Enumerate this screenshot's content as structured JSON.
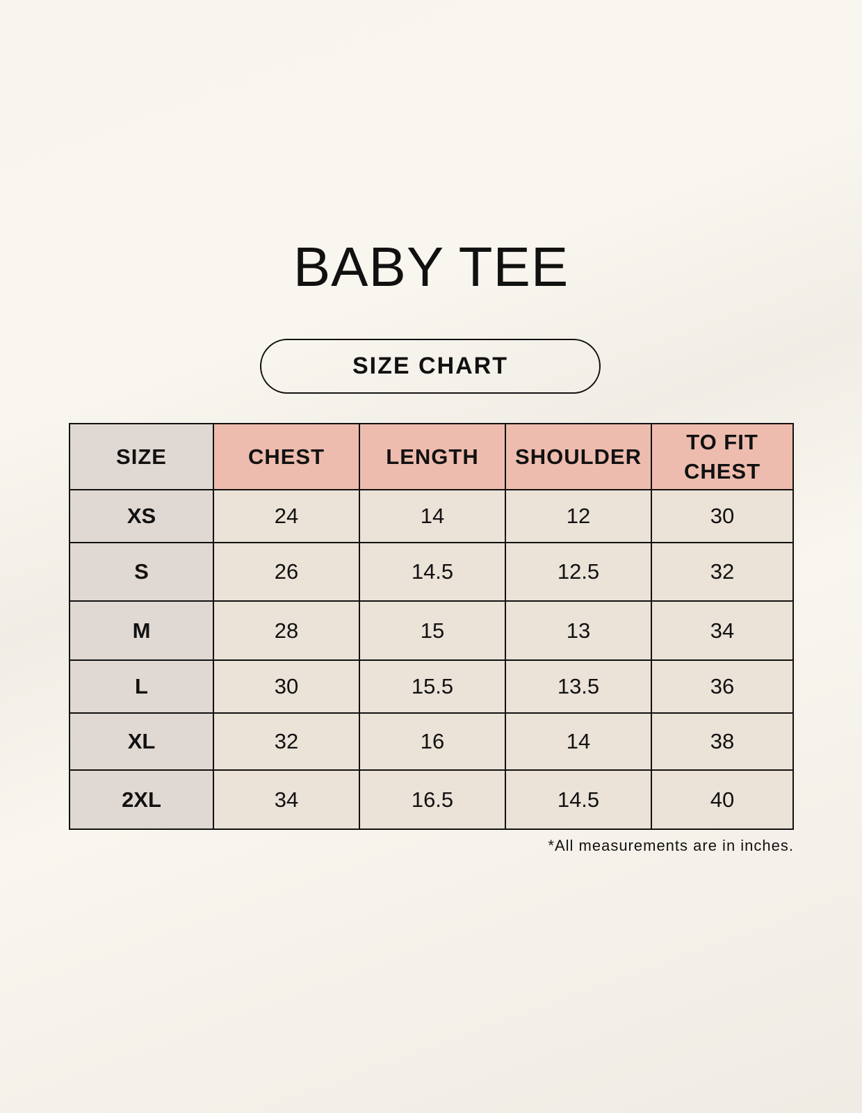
{
  "title": "BABY TEE",
  "subtitle": "SIZE CHART",
  "colors": {
    "header_pink": "#eebcae",
    "size_column": "#e0d8d2",
    "cell": "#ebe2d8"
  },
  "table": {
    "headers": [
      "SIZE",
      "CHEST",
      "LENGTH",
      "SHOULDER",
      "TO FIT CHEST"
    ],
    "rows": [
      [
        "XS",
        "24",
        "14",
        "12",
        "30"
      ],
      [
        "S",
        "26",
        "14.5",
        "12.5",
        "32"
      ],
      [
        "M",
        "28",
        "15",
        "13",
        "34"
      ],
      [
        "L",
        "30",
        "15.5",
        "13.5",
        "36"
      ],
      [
        "XL",
        "32",
        "16",
        "14",
        "38"
      ],
      [
        "2XL",
        "34",
        "16.5",
        "14.5",
        "40"
      ]
    ]
  },
  "footnote": "*All measurements are in inches."
}
